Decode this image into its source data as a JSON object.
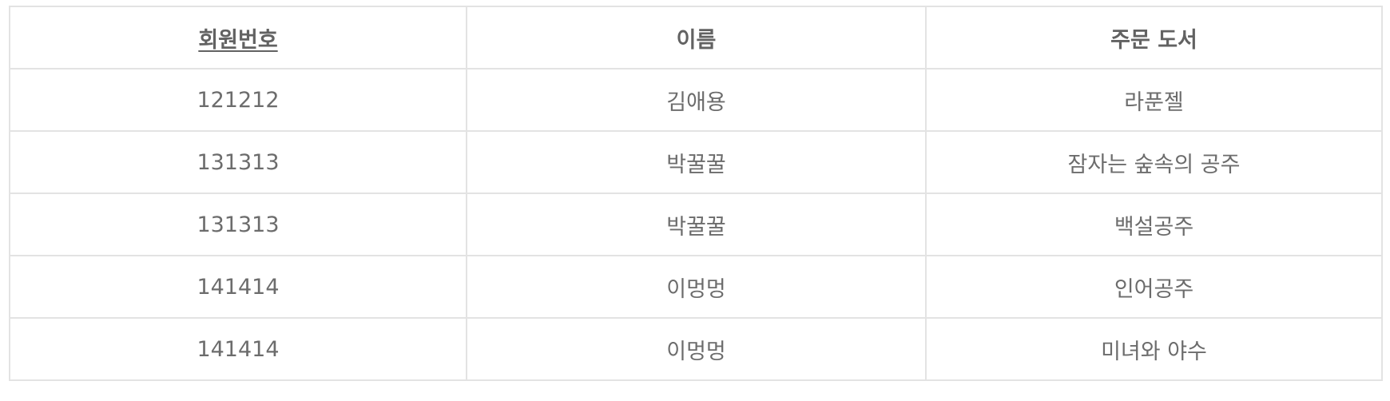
{
  "table": {
    "columns": [
      {
        "label": "회원번호",
        "is_key": true
      },
      {
        "label": "이름",
        "is_key": false
      },
      {
        "label": "주문 도서",
        "is_key": false
      }
    ],
    "rows": [
      [
        "121212",
        "김애용",
        "라푼젤"
      ],
      [
        "131313",
        "박꿀꿀",
        "잠자는 숲속의 공주"
      ],
      [
        "131313",
        "박꿀꿀",
        "백설공주"
      ],
      [
        "141414",
        "이멍멍",
        "인어공주"
      ],
      [
        "141414",
        "이멍멍",
        "미녀와 야수"
      ]
    ]
  }
}
